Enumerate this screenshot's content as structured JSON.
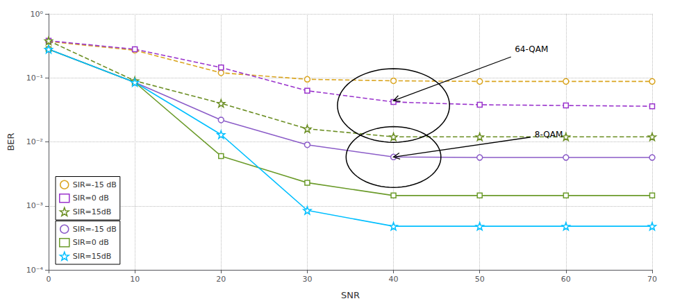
{
  "chart_data": {
    "type": "line",
    "xlabel": "SNR",
    "ylabel": "BER",
    "x": [
      0,
      10,
      20,
      30,
      40,
      50,
      60,
      70
    ],
    "xlim": [
      0,
      70
    ],
    "xticks": [
      0,
      10,
      20,
      30,
      40,
      50,
      60,
      70
    ],
    "ylim": [
      0.0001,
      1
    ],
    "yticks": [
      {
        "value": 0.0001,
        "label": "10⁻⁴"
      },
      {
        "value": 0.001,
        "label": "10⁻³"
      },
      {
        "value": 0.01,
        "label": "10⁻²"
      },
      {
        "value": 0.1,
        "label": "10⁻¹"
      },
      {
        "value": 1,
        "label": "10⁰"
      }
    ],
    "log": "y",
    "grid": true,
    "legend": "lower left",
    "series": [
      {
        "name": "SIR=-15 dB",
        "color": "#DAA520",
        "marker": "circle",
        "line_style": "dashed",
        "values": [
          0.37,
          0.27,
          0.12,
          0.095,
          0.09,
          0.088,
          0.088,
          0.088
        ]
      },
      {
        "name": "SIR=0 dB",
        "color": "#9932CC",
        "marker": "square",
        "line_style": "dashed",
        "values": [
          0.38,
          0.28,
          0.145,
          0.063,
          0.042,
          0.038,
          0.037,
          0.036
        ]
      },
      {
        "name": "SIR=15dB",
        "color": "#6B8E23",
        "marker": "star",
        "line_style": "dashed",
        "values": [
          0.38,
          0.09,
          0.04,
          0.016,
          0.012,
          0.012,
          0.012,
          0.012
        ]
      },
      {
        "name": "SIR=-15 dB",
        "color": "#8B5CC8",
        "marker": "circle",
        "line_style": "solid",
        "values": [
          0.28,
          0.085,
          0.022,
          0.009,
          0.0058,
          0.0057,
          0.0057,
          0.0057
        ]
      },
      {
        "name": "SIR=0 dB",
        "color": "#6B9B2A",
        "marker": "square",
        "line_style": "solid",
        "values": [
          0.28,
          0.085,
          0.006,
          0.0023,
          0.00145,
          0.00145,
          0.00145,
          0.00145
        ]
      },
      {
        "name": "SIR=15dB",
        "color": "#00BFFF",
        "marker": "star",
        "line_style": "solid",
        "values": [
          0.28,
          0.085,
          0.013,
          0.00085,
          0.00048,
          0.00048,
          0.00048,
          0.00048
        ]
      }
    ],
    "annotations": [
      {
        "text": "64-QAM",
        "xy": [
          40,
          0.044
        ],
        "xytext": [
          56,
          0.28
        ]
      },
      {
        "text": "8-QAM",
        "xy": [
          40,
          0.0058
        ],
        "xytext": [
          58,
          0.013
        ]
      }
    ],
    "ellipses": [
      {
        "center": [
          40,
          0.037
        ],
        "width": 13,
        "height_decades": 1.15
      },
      {
        "center": [
          40,
          0.0058
        ],
        "width": 11,
        "height_decades": 0.95
      }
    ]
  }
}
